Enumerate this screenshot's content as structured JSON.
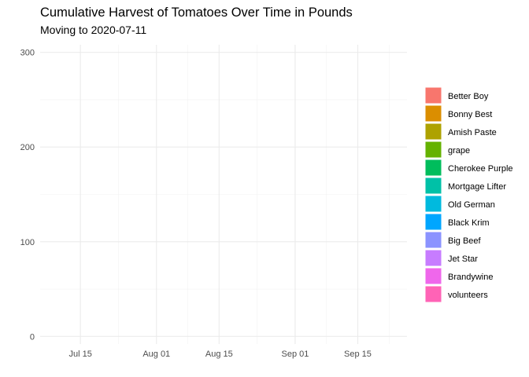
{
  "chart_data": {
    "type": "area",
    "title": "Cumulative Harvest of Tomatoes Over Time in Pounds",
    "subtitle": "Moving to 2020-07-11",
    "xlabel": "",
    "ylabel": "",
    "x_ticks": [
      "2020-07-15",
      "2020-08-01",
      "2020-08-15",
      "2020-09-01",
      "2020-09-15"
    ],
    "x_tick_labels": [
      "Jul 15",
      "Aug 01",
      "Aug 15",
      "Sep 01",
      "Sep 15"
    ],
    "xlim": [
      "2020-07-06",
      "2020-09-26"
    ],
    "y_ticks": [
      0,
      100,
      200,
      300
    ],
    "ylim": [
      -8,
      308
    ],
    "grid": true,
    "legend_position": "right",
    "series": [
      {
        "name": "Better Boy",
        "color": "#F8766D",
        "values": []
      },
      {
        "name": "Bonny Best",
        "color": "#DB8E00",
        "values": []
      },
      {
        "name": "Amish Paste",
        "color": "#AEA200",
        "values": []
      },
      {
        "name": "grape",
        "color": "#64B200",
        "values": []
      },
      {
        "name": "Cherokee Purple",
        "color": "#00BD5C",
        "values": []
      },
      {
        "name": "Mortgage Lifter",
        "color": "#00C1A7",
        "values": []
      },
      {
        "name": "Old German",
        "color": "#00BADE",
        "values": []
      },
      {
        "name": "Black Krim",
        "color": "#00A6FF",
        "values": []
      },
      {
        "name": "Big Beef",
        "color": "#8B93FF",
        "values": []
      },
      {
        "name": "Jet Star",
        "color": "#C77CFF",
        "values": []
      },
      {
        "name": "Brandywine",
        "color": "#EF67EB",
        "values": []
      },
      {
        "name": "volunteers",
        "color": "#FF63B6",
        "values": []
      }
    ]
  }
}
